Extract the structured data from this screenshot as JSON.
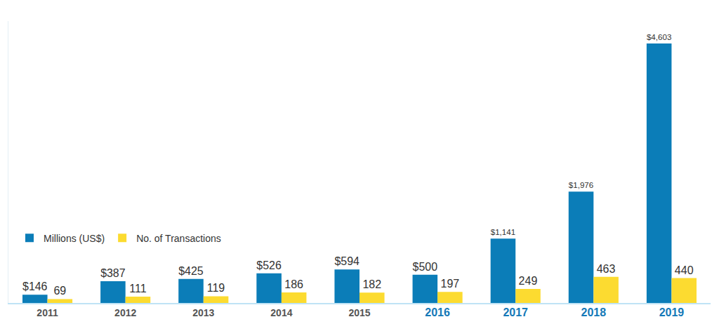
{
  "chart_data": {
    "type": "bar",
    "categories": [
      "2011",
      "2012",
      "2013",
      "2014",
      "2015",
      "2016",
      "2017",
      "2018",
      "2019"
    ],
    "series": [
      {
        "name": "Millions (US$)",
        "color": "#0b7db8",
        "values": [
          146,
          387,
          425,
          526,
          594,
          500,
          1141,
          1976,
          4603
        ],
        "value_labels": [
          "$146",
          "$387",
          "$425",
          "$526",
          "$594",
          "$500",
          "$1,141",
          "$1,976",
          "$4,603"
        ]
      },
      {
        "name": "No. of Transactions",
        "color": "#fcdb30",
        "values": [
          69,
          111,
          119,
          186,
          182,
          197,
          249,
          463,
          440
        ]
      }
    ],
    "ylim": [
      0,
      5000
    ],
    "yticks": [],
    "grid": false,
    "legend": "left",
    "data_labels": true,
    "tick_labels": "x"
  }
}
